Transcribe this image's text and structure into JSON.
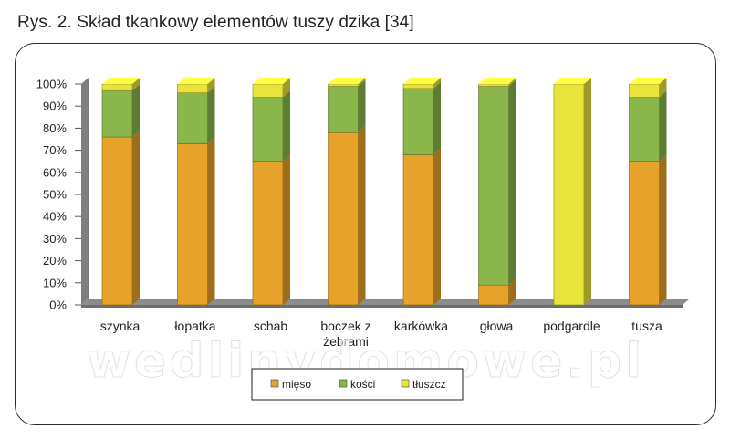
{
  "caption": "Rys. 2. Skład tkankowy elementów tuszy dzika [34]",
  "watermark": "wedlinydomowe.pl",
  "chart_data": {
    "type": "bar",
    "stacked": true,
    "percent": true,
    "categories": [
      "szynka",
      "łopatka",
      "schab",
      "boczek z żebrami",
      "karkówka",
      "głowa",
      "podgardle",
      "tusza"
    ],
    "category_lines": [
      [
        "szynka"
      ],
      [
        "łopatka"
      ],
      [
        "schab"
      ],
      [
        "boczek z",
        "żebrami"
      ],
      [
        "karkówka"
      ],
      [
        "głowa"
      ],
      [
        "podgardle"
      ],
      [
        "tusza"
      ]
    ],
    "series": [
      {
        "name": "mięso",
        "color": "#e6a22a",
        "values": [
          76,
          73,
          65,
          78,
          68,
          9,
          0,
          65
        ]
      },
      {
        "name": "kości",
        "color": "#8bb64c",
        "values": [
          21,
          23,
          29,
          21,
          30,
          90,
          0,
          29
        ]
      },
      {
        "name": "tłuszcz",
        "color": "#e8e43a",
        "values": [
          3,
          4,
          6,
          1,
          2,
          1,
          100,
          6
        ]
      }
    ],
    "yticks": [
      "0%",
      "10%",
      "20%",
      "30%",
      "40%",
      "50%",
      "60%",
      "70%",
      "80%",
      "90%",
      "100%"
    ],
    "ylim": [
      0,
      100
    ],
    "legend_position": "bottom",
    "grid": false
  }
}
